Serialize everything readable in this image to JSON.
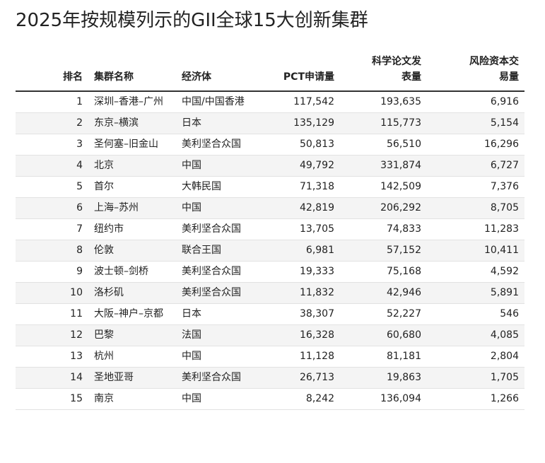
{
  "title": "2025年按规模列示的GII全球15大创新集群",
  "table": {
    "headers": [
      "排名",
      "集群名称",
      "经济体",
      "PCT申请量",
      "科学论文发表量",
      "风险资本交易量"
    ],
    "rows": [
      [
        "1",
        "深圳–香港–广州",
        "中国/中国香港",
        "117,542",
        "193,635",
        "6,916"
      ],
      [
        "2",
        "东京–横滨",
        "日本",
        "135,129",
        "115,773",
        "5,154"
      ],
      [
        "3",
        "圣何塞–旧金山",
        "美利坚合众国",
        "50,813",
        "56,510",
        "16,296"
      ],
      [
        "4",
        "北京",
        "中国",
        "49,792",
        "331,874",
        "6,727"
      ],
      [
        "5",
        "首尔",
        "大韩民国",
        "71,318",
        "142,509",
        "7,376"
      ],
      [
        "6",
        "上海–苏州",
        "中国",
        "42,819",
        "206,292",
        "8,705"
      ],
      [
        "7",
        "纽约市",
        "美利坚合众国",
        "13,705",
        "74,833",
        "11,283"
      ],
      [
        "8",
        "伦敦",
        "联合王国",
        "6,981",
        "57,152",
        "10,411"
      ],
      [
        "9",
        "波士顿–剑桥",
        "美利坚合众国",
        "19,333",
        "75,168",
        "4,592"
      ],
      [
        "10",
        "洛杉矶",
        "美利坚合众国",
        "11,832",
        "42,946",
        "5,891"
      ],
      [
        "11",
        "大阪–神户–京都",
        "日本",
        "38,307",
        "52,227",
        "546"
      ],
      [
        "12",
        "巴黎",
        "法国",
        "16,328",
        "60,680",
        "4,085"
      ],
      [
        "13",
        "杭州",
        "中国",
        "11,128",
        "81,181",
        "2,804"
      ],
      [
        "14",
        "圣地亚哥",
        "美利坚合众国",
        "26,713",
        "19,863",
        "1,705"
      ],
      [
        "15",
        "南京",
        "中国",
        "8,242",
        "136,094",
        "1,266"
      ]
    ]
  }
}
